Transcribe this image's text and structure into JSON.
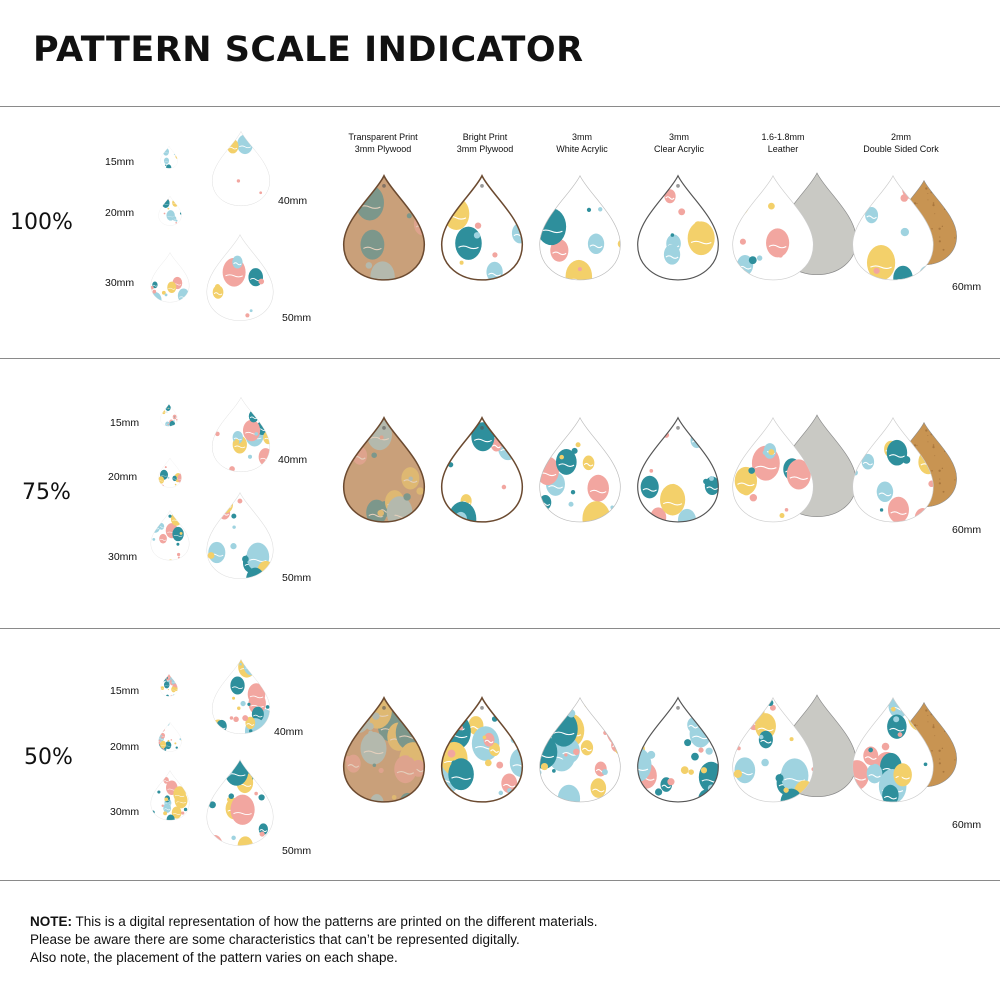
{
  "title": "PATTERN SCALE INDICATOR",
  "materials": [
    {
      "line1": "Transparent Print",
      "line2": "3mm Plywood"
    },
    {
      "line1": "Bright Print",
      "line2": "3mm Plywood"
    },
    {
      "line1": "3mm",
      "line2": "White Acrylic"
    },
    {
      "line1": "3mm",
      "line2": "Clear Acrylic"
    },
    {
      "line1": "1.6-1.8mm",
      "line2": "Leather"
    },
    {
      "line1": "2mm",
      "line2": "Double Sided Cork"
    }
  ],
  "sizes": [
    "15mm",
    "20mm",
    "30mm",
    "40mm",
    "50mm"
  ],
  "material_size": "60mm",
  "sections": [
    {
      "scale": "100%"
    },
    {
      "scale": "75%"
    },
    {
      "scale": "50%"
    }
  ],
  "note": {
    "label": "NOTE:",
    "line1": " This is a digital representation of how the patterns are printed on the different materials.",
    "line2": "Please be aware there are some characteristics that can’t be represented digitally.",
    "line3": "Also note, the placement of the pattern varies on each shape."
  },
  "colors": {
    "teal": "#2e8f9c",
    "light_blue": "#9fd3e0",
    "pink": "#f2a6a0",
    "yellow": "#f3d06a",
    "wood": "#c9a07a",
    "cork": "#c89452",
    "leather_back": "#c9c9c4"
  }
}
